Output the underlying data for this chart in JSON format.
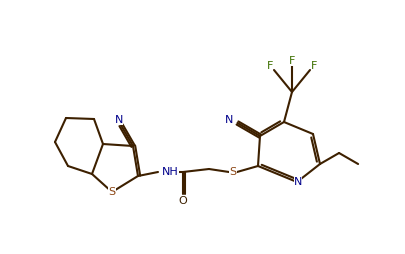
{
  "bg_color": "#ffffff",
  "bond_color": "#3d2000",
  "atom_colors": {
    "N": "#00008b",
    "S": "#8b4513",
    "O": "#3d2000",
    "F": "#3d7000",
    "C": "#000000"
  },
  "line_width": 1.5,
  "figsize": [
    4.06,
    2.54
  ],
  "dpi": 100
}
